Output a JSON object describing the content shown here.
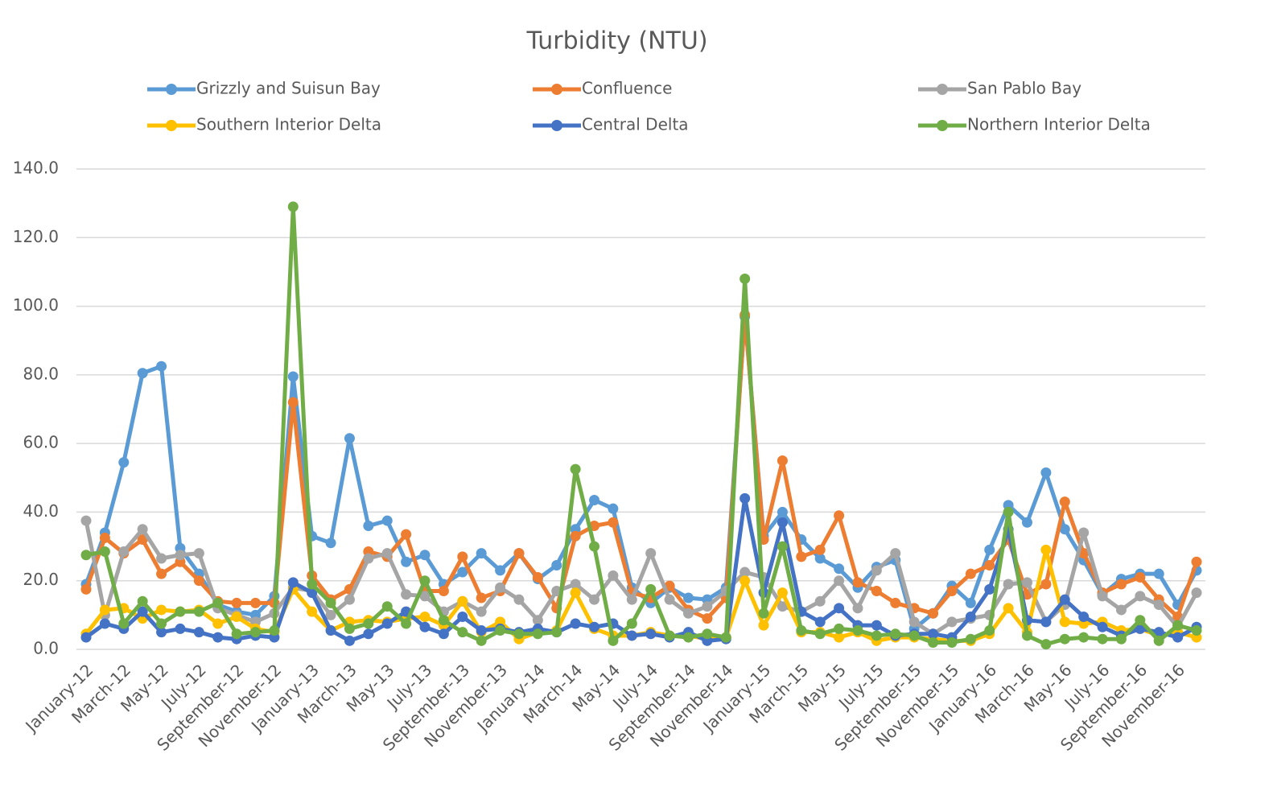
{
  "chart_data": {
    "type": "line",
    "title": "Turbidity (NTU)",
    "categories": [
      "January-12",
      null,
      "March-12",
      null,
      "May-12",
      null,
      "July-12",
      null,
      "September-12",
      null,
      "November-12",
      null,
      "January-13",
      null,
      "March-13",
      null,
      "May-13",
      null,
      "July-13",
      null,
      "September-13",
      null,
      "November-13",
      null,
      "January-14",
      null,
      "March-14",
      null,
      "May-14",
      null,
      "July-14",
      null,
      "September-14",
      null,
      "November-14",
      null,
      "January-15",
      null,
      "March-15",
      null,
      "May-15",
      null,
      "July-15",
      null,
      "September-15",
      null,
      "November-15",
      null,
      "January-16",
      null,
      "March-16",
      null,
      "May-16",
      null,
      "July-16",
      null,
      "September-16",
      null,
      "November-16",
      null
    ],
    "series": [
      {
        "name": "Grizzly and Suisun Bay",
        "color": "#5B9BD5",
        "values": [
          19,
          34,
          54.5,
          80.5,
          82.5,
          29.5,
          22,
          13,
          11,
          10,
          15.5,
          79.5,
          33,
          31,
          61.5,
          36,
          37.5,
          25.5,
          27.5,
          19,
          22.5,
          28,
          23,
          28,
          20.5,
          24.5,
          35,
          43.5,
          41,
          18,
          13.5,
          18,
          15,
          14.5,
          18,
          97,
          33,
          40,
          32,
          26.5,
          23.5,
          18,
          24,
          26,
          6,
          10.5,
          18.5,
          13.5,
          29,
          42,
          37,
          51.5,
          35,
          26,
          16,
          20.5,
          22,
          22,
          13,
          23
        ]
      },
      {
        "name": "Confluence",
        "color": "#ED7D31",
        "values": [
          17.5,
          32.5,
          28,
          32,
          22,
          25.5,
          20,
          14,
          13.5,
          13.5,
          13.5,
          72,
          21.5,
          14.5,
          17.5,
          28.5,
          27,
          33.5,
          17,
          17,
          27,
          15,
          17,
          28,
          21,
          12,
          33,
          36,
          37,
          16.5,
          15,
          18.5,
          11.5,
          9,
          15,
          97.5,
          32,
          55,
          27,
          29,
          39,
          19.5,
          17,
          13.5,
          12,
          10.5,
          17,
          22,
          24.5,
          32,
          16,
          19,
          43,
          28,
          16.5,
          19,
          21,
          14.5,
          9.5,
          25.5
        ]
      },
      {
        "name": "San Pablo Bay",
        "color": "#A5A5A5",
        "values": [
          37.5,
          10,
          28.5,
          35,
          26.5,
          27.5,
          28,
          12,
          10,
          8,
          10.5,
          18,
          17,
          10,
          14.5,
          26.5,
          28,
          16,
          15.5,
          11,
          14,
          11,
          18,
          14.5,
          8.5,
          17,
          19,
          14.5,
          21.5,
          14.5,
          28,
          14.5,
          10.5,
          12.5,
          17,
          22.5,
          21,
          12.5,
          11,
          14,
          20,
          12,
          23,
          28,
          8,
          4.5,
          8,
          9,
          10,
          19,
          19.5,
          8,
          13,
          34,
          15.5,
          11.5,
          15.5,
          13,
          6.5,
          16.5
        ]
      },
      {
        "name": "Southern Interior Delta",
        "color": "#FFC000",
        "values": [
          4.5,
          11.5,
          12,
          9,
          11.5,
          11,
          11.5,
          7.5,
          9.5,
          6,
          5,
          17.5,
          11,
          5.5,
          8,
          8.5,
          8,
          9,
          9.5,
          7,
          14,
          5,
          8,
          3,
          5,
          5.5,
          16.5,
          6,
          4,
          4,
          5,
          4,
          4,
          3,
          3.5,
          20,
          7,
          16.5,
          5,
          5,
          3.5,
          5,
          2.5,
          3.5,
          3.5,
          3,
          2.5,
          2.5,
          4.5,
          12,
          5,
          29,
          8,
          7.5,
          8,
          5.5,
          6,
          4,
          5,
          3.5
        ]
      },
      {
        "name": "Central Delta",
        "color": "#4472C4",
        "values": [
          3.5,
          7.5,
          6,
          11,
          5,
          6,
          5,
          3.5,
          3,
          4,
          3.5,
          19.5,
          16.5,
          5.5,
          2.5,
          4.5,
          7.5,
          11,
          6.5,
          4.5,
          9.5,
          5.5,
          6,
          5,
          6,
          5,
          7.5,
          6.5,
          7.5,
          4,
          4.5,
          3.5,
          5,
          2.5,
          3,
          44,
          16.5,
          37,
          11,
          8,
          12,
          7,
          7,
          4,
          4.5,
          4.5,
          3.5,
          9.5,
          17.5,
          35,
          8.5,
          8,
          14.5,
          9.5,
          6.5,
          4,
          6,
          5,
          3.5,
          6.5
        ]
      },
      {
        "name": "Northern Interior Delta",
        "color": "#70AD47",
        "values": [
          27.5,
          28.5,
          7.5,
          14,
          7.5,
          11,
          11,
          13.5,
          4.5,
          5,
          5.5,
          129,
          19,
          13.5,
          6,
          7.5,
          12.5,
          7.5,
          20,
          8.5,
          5,
          2.5,
          5.5,
          4.5,
          4.5,
          5,
          52.5,
          30,
          2.5,
          7.5,
          17.5,
          4,
          3.5,
          4.5,
          3.5,
          108,
          10.5,
          30,
          5.5,
          4.5,
          6,
          5.5,
          4,
          4.5,
          4,
          2,
          2,
          3,
          5.5,
          40,
          4,
          1.5,
          3,
          3.5,
          3,
          3,
          8.5,
          2.5,
          7,
          5.5
        ]
      }
    ],
    "ylim": [
      0,
      140
    ],
    "yticks": [
      {
        "value": 0,
        "label": "0.0"
      },
      {
        "value": 20,
        "label": "20.0"
      },
      {
        "value": 40,
        "label": "40.0"
      },
      {
        "value": 60,
        "label": "60.0"
      },
      {
        "value": 80,
        "label": "80.0"
      },
      {
        "value": 100,
        "label": "100.0"
      },
      {
        "value": 120,
        "label": "120.0"
      },
      {
        "value": 140,
        "label": "140.0"
      }
    ],
    "grid": true,
    "legend": "top"
  }
}
